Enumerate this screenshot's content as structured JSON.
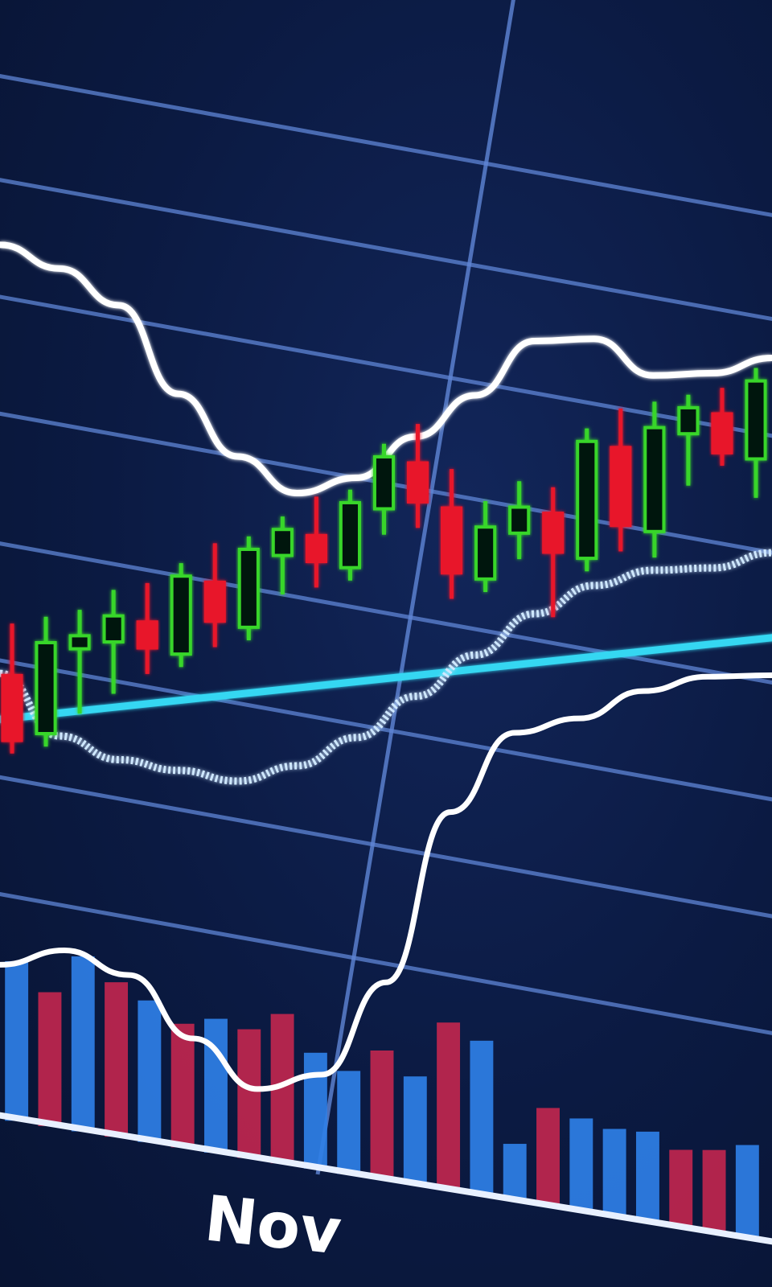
{
  "chart_data": {
    "type": "candlestick",
    "title": "",
    "xlabel": "",
    "ylabel": "",
    "x_tick_labels": [
      "Nov"
    ],
    "grid": true,
    "colors": {
      "background": "#0b1a42",
      "grid": "#5f86d6",
      "candle_up": "#37d62a",
      "candle_down": "#e8192c",
      "band_line": "#ffffff",
      "moving_average": "#cfe8ff",
      "trend_line": "#35d7f2",
      "oscillator": "#ffffff",
      "volume_up": "#2f7fe6",
      "volume_down": "#c0264e"
    },
    "candles": [
      {
        "o": 40,
        "h": 44,
        "l": 34,
        "c": 35
      },
      {
        "o": 36,
        "h": 45,
        "l": 35,
        "c": 43
      },
      {
        "o": 43,
        "h": 46,
        "l": 38,
        "c": 44
      },
      {
        "o": 44,
        "h": 48,
        "l": 40,
        "c": 46
      },
      {
        "o": 46,
        "h": 49,
        "l": 42,
        "c": 44
      },
      {
        "o": 44,
        "h": 51,
        "l": 43,
        "c": 50
      },
      {
        "o": 50,
        "h": 53,
        "l": 45,
        "c": 47
      },
      {
        "o": 47,
        "h": 54,
        "l": 46,
        "c": 53
      },
      {
        "o": 53,
        "h": 56,
        "l": 50,
        "c": 55
      },
      {
        "o": 55,
        "h": 58,
        "l": 51,
        "c": 53
      },
      {
        "o": 53,
        "h": 59,
        "l": 52,
        "c": 58
      },
      {
        "o": 58,
        "h": 63,
        "l": 56,
        "c": 62
      },
      {
        "o": 62,
        "h": 65,
        "l": 57,
        "c": 59
      },
      {
        "o": 59,
        "h": 62,
        "l": 52,
        "c": 54
      },
      {
        "o": 54,
        "h": 60,
        "l": 53,
        "c": 58
      },
      {
        "o": 58,
        "h": 62,
        "l": 56,
        "c": 60
      },
      {
        "o": 60,
        "h": 62,
        "l": 52,
        "c": 57
      },
      {
        "o": 57,
        "h": 67,
        "l": 56,
        "c": 66
      },
      {
        "o": 66,
        "h": 69,
        "l": 58,
        "c": 60
      },
      {
        "o": 60,
        "h": 70,
        "l": 58,
        "c": 68
      },
      {
        "o": 68,
        "h": 71,
        "l": 64,
        "c": 70
      },
      {
        "o": 70,
        "h": 72,
        "l": 66,
        "c": 67
      },
      {
        "o": 67,
        "h": 74,
        "l": 64,
        "c": 73
      }
    ],
    "upper_band": [
      73,
      72,
      70,
      64,
      60,
      58,
      60,
      64,
      68,
      73,
      74,
      72,
      73,
      75
    ],
    "moving_average": [
      40,
      36,
      35,
      35,
      35,
      37,
      40,
      44,
      48,
      52,
      55,
      57,
      58,
      60
    ],
    "oscillator": [
      38,
      40,
      39,
      35,
      32,
      34,
      42,
      56,
      63,
      65,
      68,
      70,
      71
    ],
    "trend_line": [
      40,
      60
    ],
    "volume": [
      {
        "v": 62,
        "dir": "up"
      },
      {
        "v": 52,
        "dir": "down"
      },
      {
        "v": 68,
        "dir": "up"
      },
      {
        "v": 60,
        "dir": "down"
      },
      {
        "v": 55,
        "dir": "up"
      },
      {
        "v": 48,
        "dir": "down"
      },
      {
        "v": 52,
        "dir": "up"
      },
      {
        "v": 50,
        "dir": "down"
      },
      {
        "v": 58,
        "dir": "down"
      },
      {
        "v": 45,
        "dir": "up"
      },
      {
        "v": 40,
        "dir": "up"
      },
      {
        "v": 50,
        "dir": "down"
      },
      {
        "v": 42,
        "dir": "up"
      },
      {
        "v": 65,
        "dir": "down"
      },
      {
        "v": 60,
        "dir": "up"
      },
      {
        "v": 22,
        "dir": "up"
      },
      {
        "v": 38,
        "dir": "down"
      },
      {
        "v": 36,
        "dir": "up"
      },
      {
        "v": 34,
        "dir": "up"
      },
      {
        "v": 35,
        "dir": "up"
      },
      {
        "v": 30,
        "dir": "down"
      },
      {
        "v": 32,
        "dir": "down"
      },
      {
        "v": 36,
        "dir": "up"
      }
    ]
  }
}
